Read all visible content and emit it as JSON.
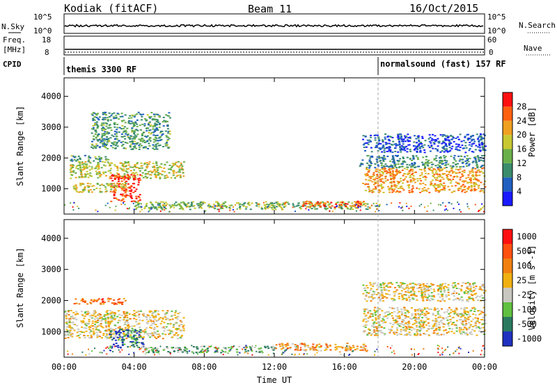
{
  "header": {
    "title": "Kodiak (fitACF)",
    "beam": "Beam 11",
    "date": "16/Oct/2015"
  },
  "nsky_panel": {
    "left_label": "N.Sky",
    "right_label": "N.Search",
    "left_ticks": [
      "10^5",
      "10^0"
    ],
    "right_ticks": [
      "10^5",
      "10^0"
    ]
  },
  "freq_panel": {
    "left_label": "Freq.",
    "left_unit": "[MHz]",
    "right_label": "Nave",
    "left_ticks": [
      "18",
      "8"
    ],
    "right_ticks": [
      "60",
      "0"
    ]
  },
  "cpid_panel": {
    "label": "CPID",
    "segments": [
      {
        "name": "themis 3300 RF",
        "start_hour": 0
      },
      {
        "name": "normalsound (fast) 157 RF",
        "start_hour": 18
      }
    ]
  },
  "chart_data": [
    {
      "type": "heatmap",
      "panel": "power",
      "ylabel": "Slant Range [km]",
      "xlabel": "",
      "x_ticks": [
        "00:00",
        "04:00",
        "08:00",
        "12:00",
        "16:00",
        "20:00",
        "00:00"
      ],
      "y_ticks": [
        1000,
        2000,
        3000,
        4000
      ],
      "xlim_hours": [
        0,
        24
      ],
      "ylim_km": [
        180,
        4600
      ],
      "colorbar": {
        "label": "Power [dB]",
        "ticks": [
          "4",
          "8",
          "12",
          "16",
          "20",
          "24",
          "28"
        ],
        "colors": [
          "#1a1aff",
          "#2060c0",
          "#3a8c6c",
          "#6ab04a",
          "#c8c832",
          "#f0a020",
          "#ff6010",
          "#ff1010"
        ]
      },
      "bands": [
        {
          "t0": 0.3,
          "t1": 6.8,
          "r0": 1350,
          "r1": 1900,
          "level": 0.55
        },
        {
          "t0": 0.3,
          "t1": 2.5,
          "r0": 1900,
          "r1": 2100,
          "level": 0.35
        },
        {
          "t0": 2.6,
          "t1": 4.3,
          "r0": 600,
          "r1": 1500,
          "level": 0.9
        },
        {
          "t0": 0.5,
          "t1": 3.5,
          "r0": 900,
          "r1": 1200,
          "level": 0.55
        },
        {
          "t0": 1.5,
          "t1": 6.0,
          "r0": 2300,
          "r1": 3500,
          "level": 0.35
        },
        {
          "t0": 4.0,
          "t1": 18.0,
          "r0": 350,
          "r1": 600,
          "level": 0.45
        },
        {
          "t0": 13.5,
          "t1": 17.2,
          "r0": 420,
          "r1": 620,
          "level": 0.8
        },
        {
          "t0": 17.0,
          "t1": 24.0,
          "r0": 900,
          "r1": 1700,
          "level": 0.7
        },
        {
          "t0": 16.8,
          "t1": 24.0,
          "r0": 1700,
          "r1": 2100,
          "level": 0.3
        },
        {
          "t0": 17.0,
          "t1": 24.0,
          "r0": 2200,
          "r1": 2800,
          "level": 0.15
        }
      ]
    },
    {
      "type": "heatmap",
      "panel": "velocity",
      "ylabel": "Slant Range [km]",
      "xlabel": "Time UT",
      "x_ticks": [
        "00:00",
        "04:00",
        "08:00",
        "12:00",
        "16:00",
        "20:00",
        "00:00"
      ],
      "y_ticks": [
        1000,
        2000,
        3000,
        4000
      ],
      "xlim_hours": [
        0,
        24
      ],
      "ylim_km": [
        180,
        4600
      ],
      "colorbar": {
        "label": "Velocity [m s^-1]",
        "ticks": [
          "1000",
          "500",
          "100",
          "25",
          "-25",
          "-100",
          "-500",
          "-1000"
        ],
        "colors": [
          "#2030c0",
          "#2a7a60",
          "#60c040",
          "#c8c8c0",
          "#f0b010",
          "#f08010",
          "#ff5010",
          "#ff1010"
        ]
      },
      "bands": [
        {
          "t0": 0.0,
          "t1": 6.8,
          "r0": 800,
          "r1": 1700,
          "level": 0.5
        },
        {
          "t0": 2.5,
          "t1": 4.5,
          "r0": 500,
          "r1": 1100,
          "level": 0.15
        },
        {
          "t0": 4.5,
          "t1": 12.0,
          "r0": 350,
          "r1": 550,
          "level": 0.3
        },
        {
          "t0": 12.0,
          "t1": 17.2,
          "r0": 400,
          "r1": 650,
          "level": 0.62
        },
        {
          "t0": 17.0,
          "t1": 24.0,
          "r0": 900,
          "r1": 1800,
          "level": 0.5
        },
        {
          "t0": 17.0,
          "t1": 24.0,
          "r0": 2000,
          "r1": 2600,
          "level": 0.5
        },
        {
          "t0": 0.5,
          "t1": 3.5,
          "r0": 1900,
          "r1": 2100,
          "level": 0.75
        }
      ]
    }
  ]
}
